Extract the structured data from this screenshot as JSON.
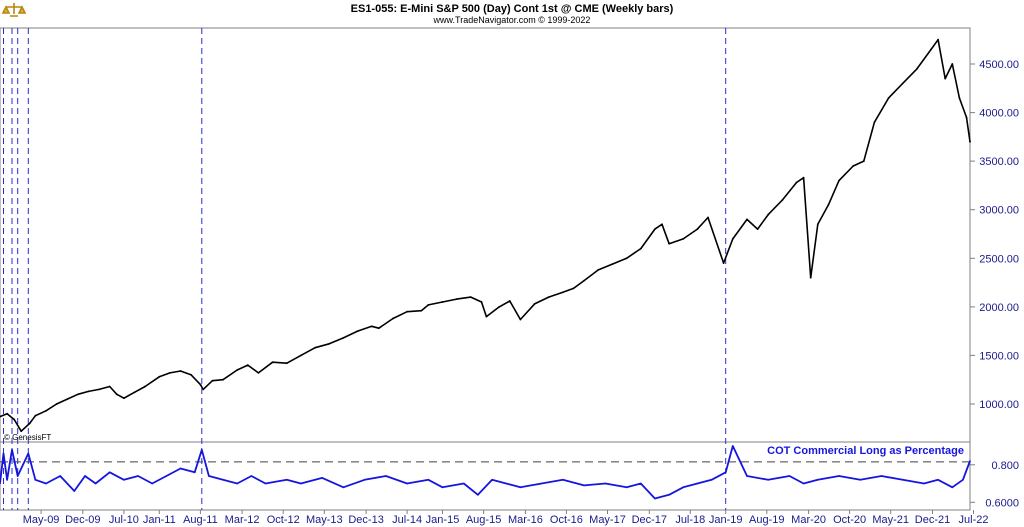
{
  "header": {
    "title": "ES1-055:  E-Mini S&P 500 (Day) Cont 1st @ CME  (Weekly bars)",
    "subtitle": "www.TradeNavigator.com © 1999-2022"
  },
  "icons": {
    "logo": "scales-icon"
  },
  "colors": {
    "price": "#000000",
    "cot": "#1515e0",
    "event_lines": "#2a2ad0",
    "axis_text": "#1a1a8c"
  },
  "copyright_label": "© GenesisFT",
  "chart_data": [
    {
      "type": "line",
      "panel": "price",
      "title": "ES1-055:  E-Mini S&P 500 (Day) Cont 1st @ CME  (Weekly bars)",
      "ylim": [
        650,
        4850
      ],
      "yticks": [
        "1000.00",
        "1500.00",
        "2000.00",
        "2500.00",
        "3000.00",
        "3500.00",
        "4000.00",
        "4500.00"
      ],
      "ytick_values": [
        1000,
        1500,
        2000,
        2500,
        3000,
        3500,
        4000,
        4500
      ],
      "xlim": [
        2008.75,
        2022.45
      ],
      "x_ticks": [
        "May-09",
        "Dec-09",
        "Jul-10",
        "Jan-11",
        "Aug-11",
        "Mar-12",
        "Oct-12",
        "May-13",
        "Dec-13",
        "Jul-14",
        "Jan-15",
        "Aug-15",
        "Mar-16",
        "Oct-16",
        "May-17",
        "Dec-17",
        "Jul-18",
        "Jan-19",
        "Aug-19",
        "Mar-20",
        "Oct-20",
        "May-21",
        "Dec-21",
        "Jul-22"
      ],
      "x_tick_values": [
        2009.33,
        2009.92,
        2010.5,
        2011.0,
        2011.58,
        2012.17,
        2012.75,
        2013.33,
        2013.92,
        2014.5,
        2015.0,
        2015.58,
        2016.17,
        2016.75,
        2017.33,
        2017.92,
        2018.5,
        2019.0,
        2019.58,
        2020.17,
        2020.75,
        2021.33,
        2021.92,
        2022.5
      ],
      "vertical_event_lines": [
        2008.8,
        2008.92,
        2009.0,
        2009.15,
        2011.6,
        2019.0
      ],
      "x": [
        2008.75,
        2008.85,
        2008.95,
        2009.05,
        2009.17,
        2009.25,
        2009.4,
        2009.55,
        2009.7,
        2009.85,
        2010.0,
        2010.15,
        2010.3,
        2010.4,
        2010.5,
        2010.65,
        2010.8,
        2011.0,
        2011.15,
        2011.3,
        2011.45,
        2011.58,
        2011.62,
        2011.75,
        2011.9,
        2012.1,
        2012.25,
        2012.4,
        2012.6,
        2012.8,
        2013.0,
        2013.2,
        2013.4,
        2013.6,
        2013.8,
        2014.0,
        2014.1,
        2014.3,
        2014.5,
        2014.7,
        2014.8,
        2015.0,
        2015.2,
        2015.4,
        2015.55,
        2015.62,
        2015.8,
        2015.95,
        2016.1,
        2016.3,
        2016.5,
        2016.7,
        2016.85,
        2017.0,
        2017.2,
        2017.4,
        2017.6,
        2017.8,
        2018.0,
        2018.1,
        2018.2,
        2018.4,
        2018.6,
        2018.75,
        2018.97,
        2019.1,
        2019.3,
        2019.45,
        2019.6,
        2019.8,
        2020.0,
        2020.1,
        2020.2,
        2020.3,
        2020.45,
        2020.6,
        2020.8,
        2020.95,
        2021.1,
        2021.3,
        2021.5,
        2021.7,
        2021.9,
        2022.0,
        2022.1,
        2022.2,
        2022.3,
        2022.4,
        2022.45
      ],
      "values": [
        870,
        900,
        840,
        720,
        800,
        880,
        930,
        1000,
        1050,
        1100,
        1130,
        1150,
        1180,
        1100,
        1060,
        1120,
        1180,
        1280,
        1320,
        1340,
        1300,
        1200,
        1150,
        1240,
        1250,
        1350,
        1400,
        1320,
        1430,
        1420,
        1500,
        1580,
        1620,
        1680,
        1750,
        1800,
        1780,
        1880,
        1950,
        1960,
        2020,
        2050,
        2080,
        2100,
        2050,
        1900,
        2000,
        2060,
        1870,
        2030,
        2100,
        2150,
        2190,
        2270,
        2380,
        2440,
        2500,
        2600,
        2800,
        2850,
        2650,
        2700,
        2800,
        2920,
        2450,
        2700,
        2900,
        2800,
        2950,
        3100,
        3280,
        3330,
        2300,
        2850,
        3050,
        3300,
        3450,
        3500,
        3900,
        4150,
        4300,
        4450,
        4650,
        4750,
        4350,
        4500,
        4150,
        3950,
        3700
      ]
    },
    {
      "type": "line",
      "panel": "indicator",
      "title": "COT Commercial Long as Percentage",
      "ylim": [
        0.58,
        0.9
      ],
      "yticks": [
        "0.6000",
        "0.800"
      ],
      "ytick_values": [
        0.6,
        0.8
      ],
      "reference_line": 0.815,
      "x": [
        2008.75,
        2008.8,
        2008.85,
        2008.92,
        2009.0,
        2009.15,
        2009.25,
        2009.4,
        2009.6,
        2009.8,
        2009.95,
        2010.1,
        2010.3,
        2010.5,
        2010.7,
        2010.9,
        2011.1,
        2011.3,
        2011.5,
        2011.6,
        2011.7,
        2011.9,
        2012.1,
        2012.3,
        2012.5,
        2012.8,
        2013.0,
        2013.3,
        2013.6,
        2013.9,
        2014.2,
        2014.5,
        2014.8,
        2015.0,
        2015.3,
        2015.5,
        2015.7,
        2015.9,
        2016.1,
        2016.4,
        2016.7,
        2017.0,
        2017.3,
        2017.6,
        2017.8,
        2018.0,
        2018.2,
        2018.4,
        2018.6,
        2018.8,
        2019.0,
        2019.1,
        2019.3,
        2019.6,
        2019.9,
        2020.1,
        2020.3,
        2020.6,
        2020.9,
        2021.2,
        2021.5,
        2021.8,
        2022.0,
        2022.2,
        2022.35,
        2022.45
      ],
      "values": [
        0.7,
        0.86,
        0.72,
        0.88,
        0.74,
        0.86,
        0.72,
        0.7,
        0.74,
        0.66,
        0.74,
        0.7,
        0.76,
        0.72,
        0.74,
        0.7,
        0.74,
        0.78,
        0.76,
        0.88,
        0.74,
        0.72,
        0.7,
        0.74,
        0.7,
        0.72,
        0.7,
        0.73,
        0.68,
        0.72,
        0.74,
        0.7,
        0.72,
        0.68,
        0.7,
        0.64,
        0.72,
        0.7,
        0.68,
        0.7,
        0.72,
        0.69,
        0.7,
        0.68,
        0.7,
        0.62,
        0.64,
        0.68,
        0.7,
        0.72,
        0.76,
        0.9,
        0.74,
        0.72,
        0.74,
        0.7,
        0.72,
        0.74,
        0.72,
        0.74,
        0.72,
        0.7,
        0.72,
        0.68,
        0.72,
        0.82
      ]
    }
  ]
}
